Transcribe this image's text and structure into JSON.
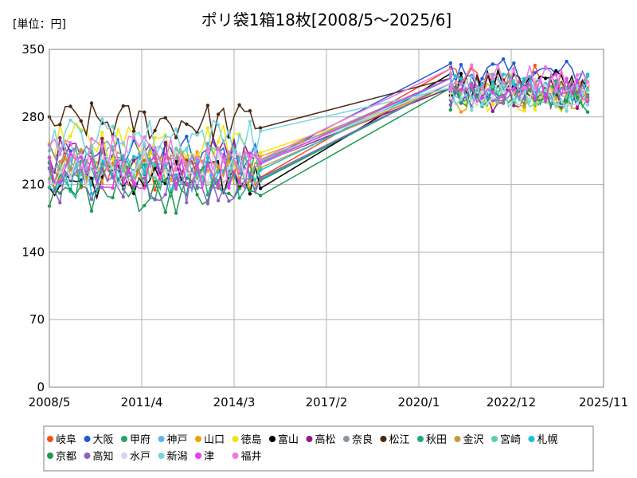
{
  "chart_data": {
    "type": "line",
    "title": "ポリ袋1箱18枚[2008/5～2025/6]",
    "unit_label": "[単位：円]",
    "xlabel": "",
    "ylabel": "",
    "ylim": [
      0,
      350
    ],
    "y_ticks": [
      "350",
      "280",
      "210",
      "140",
      "70",
      "0"
    ],
    "x_ticks": [
      "2008/5",
      "2011/4",
      "2014/3",
      "2017/2",
      "2020/1",
      "2022/12",
      "2025/11"
    ],
    "grid": true,
    "legend_position": "bottom",
    "series": [
      {
        "name": "岐阜",
        "color": "#f4511e",
        "first": 220,
        "last": 320
      },
      {
        "name": "大阪",
        "color": "#1e5bd8",
        "first": 240,
        "last": 325
      },
      {
        "name": "甲府",
        "color": "#26a269",
        "first": 225,
        "last": 305
      },
      {
        "name": "神戸",
        "color": "#5db6e8",
        "first": 230,
        "last": 310
      },
      {
        "name": "山口",
        "color": "#f0a30a",
        "first": 225,
        "last": 300
      },
      {
        "name": "徳島",
        "color": "#f5e50a",
        "first": 255,
        "last": 300
      },
      {
        "name": "富山",
        "color": "#000000",
        "first": 215,
        "last": 315
      },
      {
        "name": "高松",
        "color": "#8e1a8e",
        "first": 240,
        "last": 300
      },
      {
        "name": "奈良",
        "color": "#8a96a3",
        "first": 235,
        "last": 310
      },
      {
        "name": "松江",
        "color": "#4a2a12",
        "first": 275,
        "last": 310
      },
      {
        "name": "秋田",
        "color": "#20a87a",
        "first": 215,
        "last": 305
      },
      {
        "name": "金沢",
        "color": "#c79a3d",
        "first": 230,
        "last": 305
      },
      {
        "name": "宮崎",
        "color": "#5fd0a3",
        "first": 230,
        "last": 305
      },
      {
        "name": "札幌",
        "color": "#18c1d6",
        "first": 220,
        "last": 310
      },
      {
        "name": "京都",
        "color": "#1d9a50",
        "first": 200,
        "last": 300
      },
      {
        "name": "高知",
        "color": "#8a63c4",
        "first": 210,
        "last": 305
      },
      {
        "name": "水戸",
        "color": "#d5d5e8",
        "first": 225,
        "last": 305
      },
      {
        "name": "新潟",
        "color": "#76d6e0",
        "first": 260,
        "last": 300
      },
      {
        "name": "津",
        "color": "#e83cf0",
        "first": 225,
        "last": 310
      },
      {
        "name": "福井",
        "color": "#ef7ae0",
        "first": 240,
        "last": 320
      }
    ]
  }
}
